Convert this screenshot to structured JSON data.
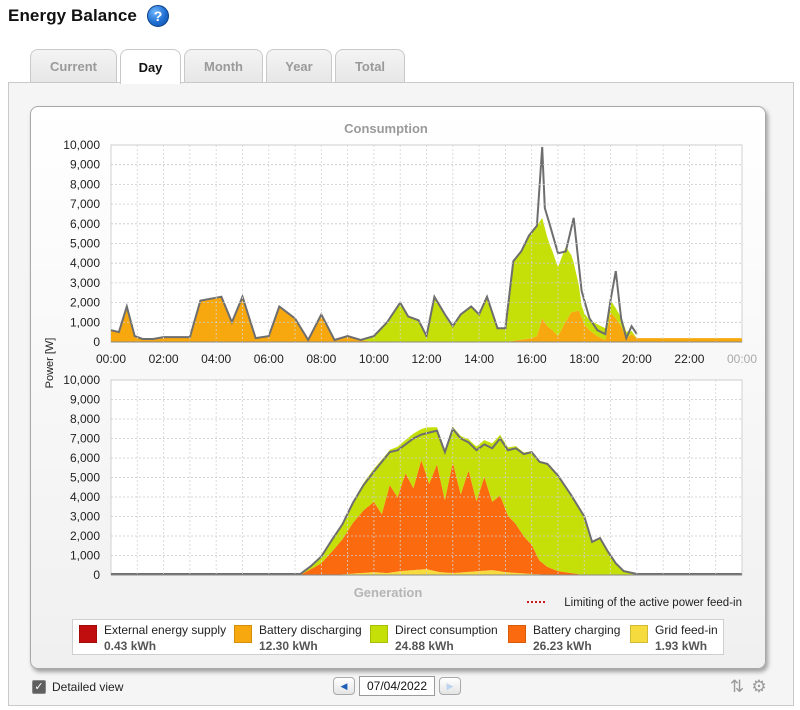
{
  "header": {
    "title": "Energy Balance",
    "help_icon": "help-icon"
  },
  "tabs": [
    {
      "label": "Current",
      "active": false
    },
    {
      "label": "Day",
      "active": true
    },
    {
      "label": "Month",
      "active": false
    },
    {
      "label": "Year",
      "active": false
    },
    {
      "label": "Total",
      "active": false
    }
  ],
  "chart": {
    "ylabel": "Power [W]",
    "consumption_title": "Consumption",
    "generation_title": "Generation",
    "limit_label": "Limiting of the active power feed-in"
  },
  "legend": [
    {
      "label": "External energy supply",
      "value": "0.43 kWh",
      "color": "#c00e0e"
    },
    {
      "label": "Battery discharging",
      "value": "12.30 kWh",
      "color": "#f8a80f"
    },
    {
      "label": "Direct consumption",
      "value": "24.88 kWh",
      "color": "#c5e008"
    },
    {
      "label": "Battery charging",
      "value": "26.23 kWh",
      "color": "#fb6a0f"
    },
    {
      "label": "Grid feed-in",
      "value": "1.93 kWh",
      "color": "#f6db3f"
    }
  ],
  "footer": {
    "detailed_view_label": "Detailed view",
    "detailed_view_checked": true,
    "date": "07/04/2022",
    "prev_icon": "chevron-left-icon",
    "next_icon": "chevron-right-icon",
    "tool_icons": [
      "sort-icon",
      "gear-icon"
    ]
  },
  "chart_data": [
    {
      "type": "area",
      "title": "Consumption",
      "ylabel": "Power [W]",
      "xlabel": "",
      "ylim": [
        0,
        10000
      ],
      "x_ticks": [
        "00:00",
        "02:00",
        "04:00",
        "06:00",
        "08:00",
        "10:00",
        "12:00",
        "14:00",
        "16:00",
        "18:00",
        "20:00",
        "22:00",
        "00:00"
      ],
      "y_ticks": [
        "0",
        "1,000",
        "2,000",
        "3,000",
        "4,000",
        "5,000",
        "6,000",
        "7,000",
        "8,000",
        "9,000",
        "10,000"
      ],
      "grid": true,
      "series": [
        {
          "name": "Battery discharging",
          "x": [
            0.0,
            0.3,
            0.6,
            0.9,
            1.2,
            1.6,
            2.0,
            3.0,
            3.4,
            3.8,
            4.2,
            4.6,
            5.0,
            5.5,
            6.0,
            6.4,
            7.0,
            7.5,
            8.0,
            8.5,
            9.0,
            9.5,
            10.0,
            11,
            12,
            13,
            14,
            15,
            15.5,
            16,
            16.2,
            16.4,
            16.6,
            16.8,
            17.0,
            17.2,
            17.5,
            17.8,
            18.0,
            18.2,
            18.5,
            18.8,
            19.0,
            19.2,
            19.4,
            19.6,
            19.8,
            20.0
          ],
          "values": [
            600,
            500,
            1800,
            300,
            150,
            150,
            250,
            250,
            2100,
            2200,
            2300,
            1000,
            2300,
            200,
            300,
            1800,
            1200,
            100,
            1400,
            100,
            300,
            100,
            0,
            0,
            0,
            0,
            0,
            0,
            100,
            200,
            300,
            1200,
            800,
            600,
            300,
            800,
            1500,
            1600,
            900,
            600,
            300,
            100,
            1500,
            1200,
            800,
            200,
            400,
            200
          ]
        },
        {
          "name": "Direct consumption",
          "x": [
            0,
            9.5,
            10.0,
            10.5,
            11.0,
            11.3,
            11.7,
            12.0,
            12.3,
            12.7,
            13.0,
            13.3,
            13.7,
            14.0,
            14.3,
            14.7,
            15.0,
            15.3,
            15.6,
            15.9,
            16.2,
            16.4,
            16.5,
            16.7,
            17.0,
            17.3,
            17.6,
            17.9,
            18.2,
            18.5,
            19.0,
            19.5,
            20.0
          ],
          "values": [
            0,
            0,
            300,
            1000,
            2000,
            1300,
            1100,
            300,
            2300,
            1400,
            800,
            1400,
            1800,
            1400,
            2300,
            700,
            700,
            4000,
            4500,
            5200,
            5600,
            5100,
            4800,
            4200,
            3500,
            3800,
            2500,
            600,
            500,
            600,
            600,
            400,
            0
          ]
        },
        {
          "name": "External energy supply",
          "x": [
            0,
            6,
            6.2,
            6.4,
            20,
            24
          ],
          "values": [
            0,
            0,
            60,
            0,
            0,
            0
          ]
        }
      ],
      "total_line": {
        "x": [
          0.0,
          0.3,
          0.6,
          0.9,
          1.2,
          1.6,
          2.0,
          3.0,
          3.4,
          3.8,
          4.2,
          4.6,
          5.0,
          5.5,
          6.0,
          6.4,
          7.0,
          7.5,
          8.0,
          8.5,
          9.0,
          9.5,
          10.0,
          10.5,
          11.0,
          11.3,
          11.7,
          12.0,
          12.3,
          12.7,
          13.0,
          13.3,
          13.7,
          14.0,
          14.3,
          14.7,
          15.0,
          15.3,
          15.6,
          15.9,
          16.2,
          16.4,
          16.5,
          16.7,
          17.0,
          17.3,
          17.6,
          17.9,
          18.2,
          18.5,
          18.8,
          19.0,
          19.2,
          19.4,
          19.6,
          19.8,
          20.0
        ],
        "values": [
          600,
          500,
          1800,
          300,
          150,
          150,
          250,
          250,
          2100,
          2200,
          2300,
          1000,
          2300,
          200,
          300,
          1800,
          1200,
          100,
          1400,
          100,
          300,
          100,
          300,
          1000,
          2000,
          1300,
          1100,
          300,
          2300,
          1400,
          800,
          1400,
          1800,
          1400,
          2300,
          700,
          700,
          4100,
          4600,
          5400,
          5900,
          9900,
          6800,
          5900,
          4500,
          4600,
          6300,
          2600,
          1200,
          600,
          400,
          2100,
          3600,
          1200,
          200,
          800,
          400
        ]
      }
    },
    {
      "type": "area",
      "title": "Generation",
      "ylabel": "Power [W]",
      "xlabel": "",
      "ylim": [
        0,
        10000
      ],
      "y_ticks": [
        "0",
        "1,000",
        "2,000",
        "3,000",
        "4,000",
        "5,000",
        "6,000",
        "7,000",
        "8,000",
        "9,000",
        "10,000"
      ],
      "grid": true,
      "series": [
        {
          "name": "Grid feed-in",
          "x": [
            0,
            8.0,
            8.5,
            9.0,
            9.5,
            10.0,
            10.5,
            11.0,
            11.5,
            12.0,
            12.5,
            13.0,
            13.5,
            14.0,
            14.5,
            15.0,
            15.5,
            16.0,
            16.5,
            17.0,
            17.5,
            18.0,
            24
          ],
          "values": [
            0,
            0,
            0,
            50,
            100,
            150,
            100,
            200,
            250,
            300,
            150,
            100,
            150,
            200,
            250,
            150,
            100,
            50,
            20,
            0,
            0,
            0,
            0
          ]
        },
        {
          "name": "Battery charging",
          "x": [
            0,
            7.2,
            7.6,
            8.0,
            8.4,
            8.8,
            9.2,
            9.6,
            10.0,
            10.3,
            10.6,
            10.9,
            11.2,
            11.5,
            11.8,
            12.1,
            12.4,
            12.7,
            13.0,
            13.3,
            13.6,
            13.9,
            14.2,
            14.5,
            14.8,
            15.1,
            15.4,
            15.7,
            16.0,
            16.3,
            16.6,
            17.0,
            17.5,
            18.0,
            24
          ],
          "values": [
            0,
            0,
            300,
            600,
            1200,
            1800,
            2600,
            3200,
            3600,
            3000,
            4500,
            3800,
            5000,
            4200,
            5600,
            4400,
            5500,
            3700,
            5700,
            4000,
            5200,
            3600,
            4800,
            3500,
            3900,
            2900,
            2500,
            1900,
            1500,
            700,
            400,
            200,
            100,
            0,
            0
          ]
        },
        {
          "name": "Direct consumption",
          "x": [
            0,
            7.2,
            7.6,
            8.0,
            8.4,
            8.8,
            9.2,
            9.6,
            10.0,
            10.3,
            10.6,
            10.9,
            11.2,
            11.5,
            11.8,
            12.1,
            12.4,
            12.7,
            13.0,
            13.3,
            13.6,
            13.9,
            14.2,
            14.5,
            14.8,
            15.1,
            15.4,
            15.7,
            16.0,
            16.3,
            16.6,
            17.0,
            17.5,
            18.0,
            18.3,
            18.6,
            18.9,
            19.2,
            19.5,
            20.0,
            24
          ],
          "values": [
            0,
            0,
            150,
            350,
            600,
            800,
            1100,
            1400,
            1700,
            2800,
            1800,
            2600,
            1700,
            2800,
            1600,
            2900,
            1900,
            2600,
            1800,
            3000,
            1600,
            2800,
            1900,
            3000,
            3100,
            3500,
            4000,
            4300,
            4800,
            5100,
            5300,
            4900,
            4000,
            3000,
            1700,
            1900,
            1200,
            600,
            200,
            0,
            0
          ]
        }
      ],
      "total_line": {
        "x": [
          0,
          7.2,
          7.6,
          8.0,
          8.4,
          8.8,
          9.2,
          9.6,
          10.0,
          10.3,
          10.6,
          10.9,
          11.2,
          11.5,
          11.8,
          12.1,
          12.4,
          12.7,
          13.0,
          13.3,
          13.6,
          13.9,
          14.2,
          14.5,
          14.8,
          15.1,
          15.4,
          15.7,
          16.0,
          16.3,
          16.6,
          17.0,
          17.5,
          18.0,
          18.3,
          18.6,
          18.9,
          19.2,
          19.5,
          20.0,
          24
        ],
        "values": [
          50,
          50,
          450,
          950,
          1800,
          2600,
          3700,
          4600,
          5300,
          5800,
          6300,
          6400,
          6700,
          7000,
          7200,
          7300,
          7400,
          6300,
          7500,
          7000,
          6800,
          6400,
          6700,
          6500,
          7000,
          6400,
          6500,
          6200,
          6300,
          5800,
          5700,
          5100,
          4100,
          3000,
          1700,
          1900,
          1200,
          600,
          200,
          50,
          50
        ]
      },
      "legend_note": "Limiting of the active power feed-in"
    }
  ]
}
